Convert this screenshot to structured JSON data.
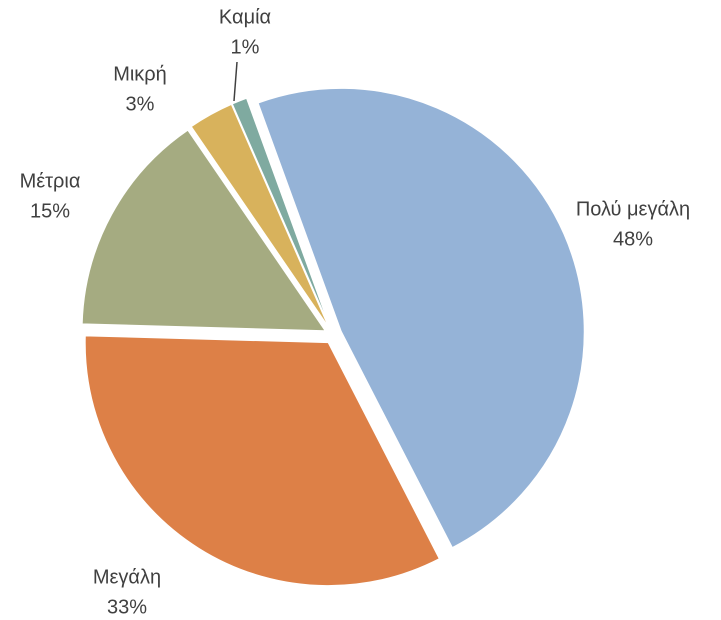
{
  "chart_data": {
    "type": "pie",
    "categories": [
      "Πολύ μεγάλη",
      "Μεγάλη",
      "Μέτρια",
      "Μικρή",
      "Καμία"
    ],
    "values": [
      48,
      33,
      15,
      3,
      1
    ],
    "value_labels": [
      "48%",
      "33%",
      "15%",
      "3%",
      "1%"
    ],
    "colors": [
      "#95b3d7",
      "#dd8047",
      "#a5ab81",
      "#d8b25c",
      "#7faaa0"
    ]
  }
}
